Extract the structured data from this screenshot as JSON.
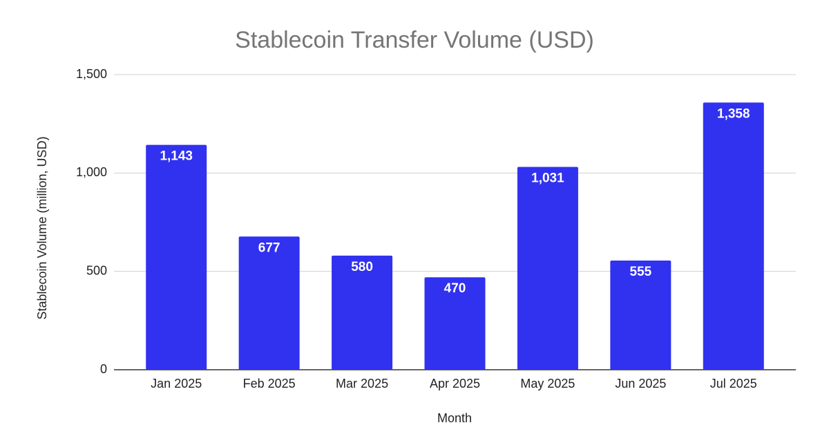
{
  "chart_data": {
    "type": "bar",
    "title": "Stablecoin Transfer Volume (USD)",
    "x_label": "Month",
    "y_label": "Stablecoin Volume (million, USD)",
    "categories": [
      "Jan 2025",
      "Feb 2025",
      "Mar 2025",
      "Apr 2025",
      "May 2025",
      "Jun 2025",
      "Jul 2025"
    ],
    "values": [
      1143,
      677,
      580,
      470,
      1031,
      555,
      1358
    ],
    "value_labels": [
      "1,143",
      "677",
      "580",
      "470",
      "1,031",
      "555",
      "1,358"
    ],
    "color": "#3131f0",
    "ylim": [
      0,
      1500
    ],
    "yticks": [
      0,
      500,
      {
        "value": 1000,
        "label": "1,000"
      },
      {
        "value": 1500,
        "label": "1,500"
      }
    ],
    "grid": true
  }
}
